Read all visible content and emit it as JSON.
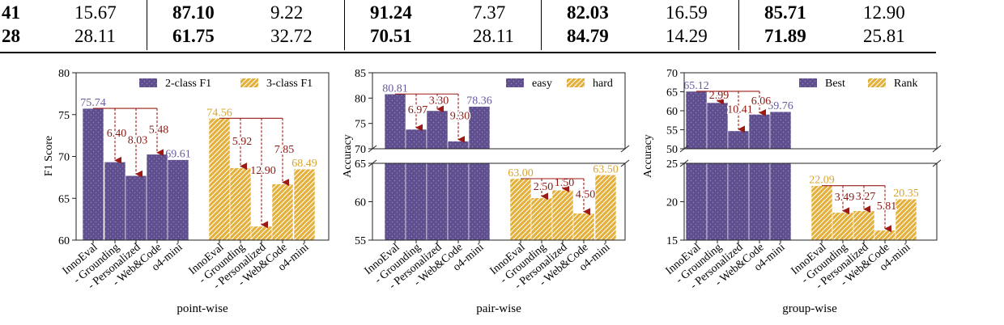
{
  "table": {
    "rows": [
      [
        "41",
        "15.67",
        "87.10",
        "9.22",
        "91.24",
        "7.37",
        "82.03",
        "16.59",
        "85.71",
        "12.90"
      ],
      [
        "28",
        "28.11",
        "61.75",
        "32.72",
        "70.51",
        "28.11",
        "84.79",
        "14.29",
        "71.89",
        "25.81"
      ]
    ]
  },
  "colors": {
    "purple": "#5f4f8e",
    "orange": "#e4b03a",
    "arrow": "#9c1a14",
    "purple_label": "#6a5a9e",
    "orange_label": "#d8a431",
    "arrow_label": "#8a1a14"
  },
  "chart_data": [
    {
      "type": "bar",
      "subtitle": "point-wise",
      "ylabel": "F1 Score",
      "ylim": [
        60,
        80
      ],
      "yticks": [
        "60",
        "65",
        "70",
        "75",
        "80"
      ],
      "categories": [
        "InnoEval",
        "- Grounding",
        "- Personalized",
        "- Web&Code",
        "o4-mini"
      ],
      "legend_position": "top",
      "series": [
        {
          "name": "2-class F1",
          "values": [
            75.74,
            69.34,
            67.71,
            70.26,
            69.61
          ],
          "labels": [
            "75.74",
            "",
            "",
            "",
            "69.61"
          ]
        },
        {
          "name": "3-class F1",
          "values": [
            74.56,
            68.64,
            61.66,
            66.71,
            68.49
          ],
          "labels": [
            "74.56",
            "",
            "",
            "",
            "68.49"
          ]
        }
      ],
      "annotations": [
        {
          "series": 0,
          "target": 1,
          "text": "6.40"
        },
        {
          "series": 0,
          "target": 2,
          "text": "8.03"
        },
        {
          "series": 0,
          "target": 3,
          "text": "5.48"
        },
        {
          "series": 1,
          "target": 1,
          "text": "5.92"
        },
        {
          "series": 1,
          "target": 2,
          "text": "12.90"
        },
        {
          "series": 1,
          "target": 3,
          "text": "7.85"
        }
      ]
    },
    {
      "type": "bar",
      "subtitle": "pair-wise",
      "ylabel": "Accuracy",
      "broken_axis": true,
      "upper_ylim": [
        70,
        85
      ],
      "upper_yticks": [
        "70",
        "75",
        "80",
        "85"
      ],
      "lower_ylim": [
        55,
        65
      ],
      "lower_yticks": [
        "55",
        "60",
        "65"
      ],
      "categories": [
        "InnoEval",
        "- Grounding",
        "- Personalized",
        "- Web&Code",
        "o4-mini"
      ],
      "legend_position": "top",
      "series": [
        {
          "name": "easy",
          "values": [
            80.81,
            73.84,
            77.51,
            71.51,
            78.36
          ],
          "labels": [
            "80.81",
            "",
            "",
            "",
            "78.36"
          ]
        },
        {
          "name": "hard",
          "values": [
            63.0,
            60.5,
            61.5,
            58.5,
            63.5
          ],
          "labels": [
            "63.00",
            "",
            "",
            "",
            "63.50"
          ]
        }
      ],
      "annotations": [
        {
          "series": 0,
          "target": 1,
          "text": "6.97"
        },
        {
          "series": 0,
          "target": 2,
          "text": "3.30"
        },
        {
          "series": 0,
          "target": 3,
          "text": "9.30"
        },
        {
          "series": 1,
          "target": 1,
          "text": "2.50"
        },
        {
          "series": 1,
          "target": 2,
          "text": "1.50"
        },
        {
          "series": 1,
          "target": 3,
          "text": "4.50"
        }
      ]
    },
    {
      "type": "bar",
      "subtitle": "group-wise",
      "ylabel": "Accuracy",
      "broken_axis": true,
      "upper_ylim": [
        50,
        70
      ],
      "upper_yticks": [
        "50",
        "55",
        "60",
        "65",
        "70"
      ],
      "lower_ylim": [
        15,
        25
      ],
      "lower_yticks": [
        "15",
        "20",
        "25"
      ],
      "categories": [
        "InnoEval",
        "- Grounding",
        "- Personalized",
        "- Web&Code",
        "o4-mini"
      ],
      "legend_position": "top",
      "series": [
        {
          "name": "Best",
          "values": [
            65.12,
            62.13,
            54.71,
            59.06,
            59.76
          ],
          "labels": [
            "65.12",
            "",
            "",
            "",
            "59.76"
          ]
        },
        {
          "name": "Rank",
          "values": [
            22.09,
            18.6,
            18.82,
            16.28,
            20.35
          ],
          "labels": [
            "22.09",
            "",
            "",
            "",
            "20.35"
          ]
        }
      ],
      "annotations": [
        {
          "series": 0,
          "target": 1,
          "text": "2.99"
        },
        {
          "series": 0,
          "target": 2,
          "text": "10.41"
        },
        {
          "series": 0,
          "target": 3,
          "text": "6.06"
        },
        {
          "series": 1,
          "target": 1,
          "text": "3.49"
        },
        {
          "series": 1,
          "target": 2,
          "text": "3.27"
        },
        {
          "series": 1,
          "target": 3,
          "text": "5.81"
        }
      ]
    }
  ]
}
